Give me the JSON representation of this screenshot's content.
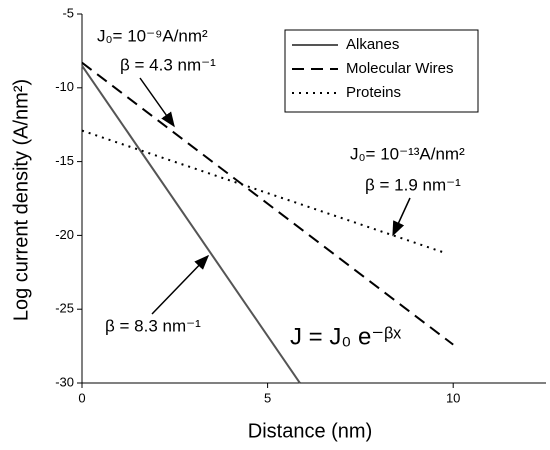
{
  "chart_data": {
    "type": "line",
    "xlabel": "Distance (nm)",
    "ylabel": "Log current density (A/nm²)",
    "xlim": [
      0,
      12.5
    ],
    "ylim": [
      -30,
      -5
    ],
    "xticks": [
      0,
      5,
      10
    ],
    "yticks": [
      -5,
      -10,
      -15,
      -20,
      -25,
      -30
    ],
    "series": [
      {
        "name": "Alkanes",
        "color": "#555555",
        "dash": "solid",
        "x": [
          0,
          5.87
        ],
        "values": [
          -8.5,
          -30
        ]
      },
      {
        "name": "Molecular Wires",
        "color": "#000000",
        "dash": "dashed",
        "x": [
          0,
          10
        ],
        "values": [
          -8.3,
          -27.4
        ]
      },
      {
        "name": "Proteins",
        "color": "#000000",
        "dash": "dotted",
        "x": [
          0,
          9.8
        ],
        "values": [
          -12.9,
          -21.2
        ]
      }
    ],
    "annotations": [
      "J₀= 10⁻⁹A/nm²",
      "β = 4.3 nm⁻¹",
      "J₀= 10⁻¹³A/nm²",
      "β = 1.9 nm⁻¹",
      "β = 8.3 nm⁻¹",
      "J = J₀ e⁻ᵝˣ"
    ]
  }
}
